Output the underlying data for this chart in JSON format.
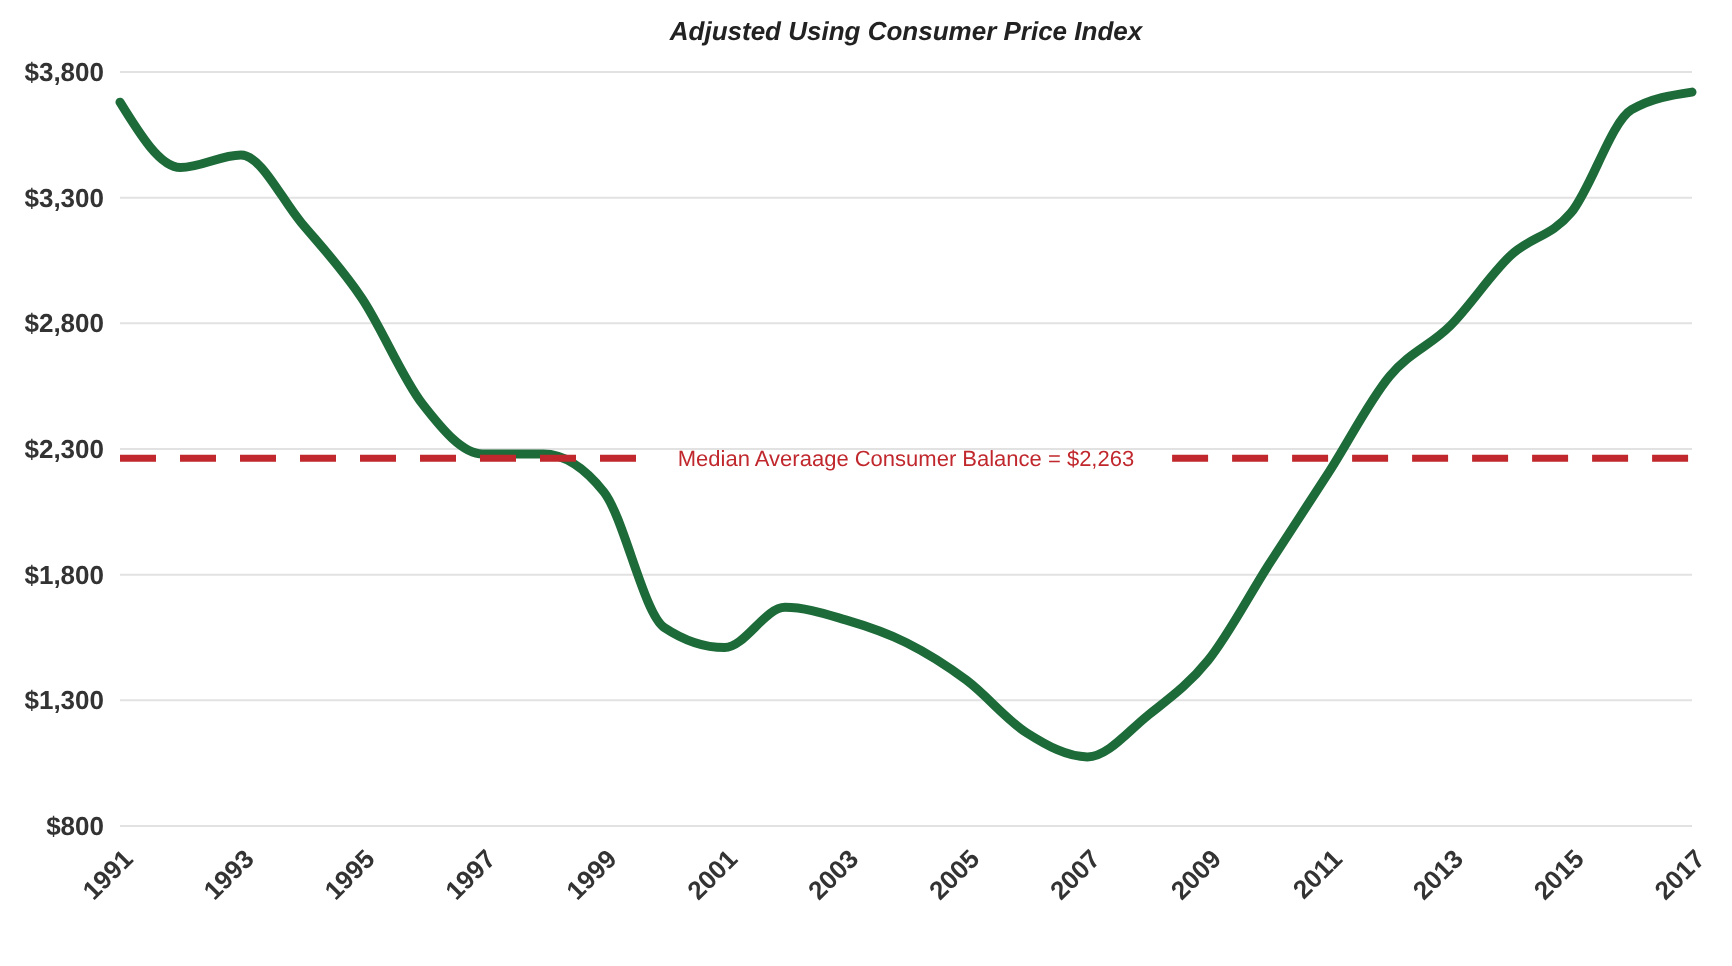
{
  "chart_data": {
    "type": "line",
    "title": "Adjusted Using Consumer Price Index",
    "x": [
      1991,
      1992,
      1993,
      1994,
      1995,
      1996,
      1997,
      1998,
      1999,
      2000,
      2001,
      2002,
      2003,
      2004,
      2005,
      2006,
      2007,
      2008,
      2009,
      2010,
      2011,
      2012,
      2013,
      2014,
      2015,
      2016,
      2017
    ],
    "series": [
      {
        "color": "#1e6b3a",
        "values": [
          3680,
          3420,
          3470,
          3200,
          2900,
          2480,
          2280,
          2280,
          2130,
          1590,
          1510,
          1670,
          1620,
          1530,
          1380,
          1170,
          1075,
          1240,
          1460,
          1840,
          2210,
          2590,
          2790,
          3070,
          3240,
          3650,
          3720
        ]
      }
    ],
    "xlim": [
      1991,
      2017
    ],
    "xticks": [
      1991,
      1993,
      1995,
      1997,
      1999,
      2001,
      2003,
      2005,
      2007,
      2009,
      2011,
      2013,
      2015,
      2017
    ],
    "ylim": [
      800,
      3800
    ],
    "yticks": [
      {
        "value": 800,
        "label": "$800"
      },
      {
        "value": 1300,
        "label": "$1,300"
      },
      {
        "value": 1800,
        "label": "$1,800"
      },
      {
        "value": 2300,
        "label": "$2,300"
      },
      {
        "value": 2800,
        "label": "$2,800"
      },
      {
        "value": 3300,
        "label": "$3,300"
      },
      {
        "value": 3800,
        "label": "$3,800"
      }
    ],
    "ref_lines": [
      {
        "axis": "y",
        "value": 2263,
        "label": "Median Averaage Consumer Balance = $2,263",
        "color": "#c0282d",
        "line_style": "dashed"
      }
    ],
    "grid": "y",
    "marker": "none",
    "line_style": "solid"
  }
}
